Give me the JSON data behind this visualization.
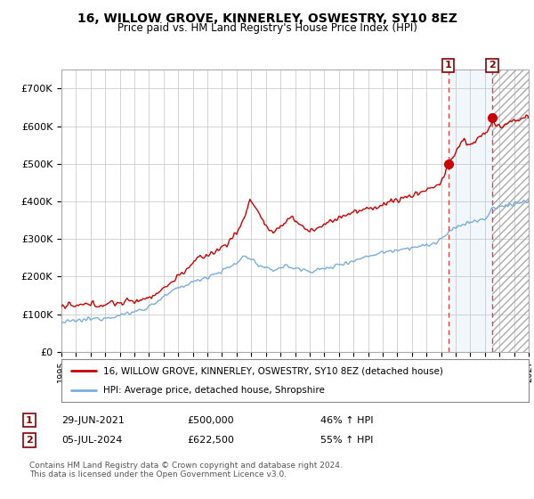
{
  "title": "16, WILLOW GROVE, KINNERLEY, OSWESTRY, SY10 8EZ",
  "subtitle": "Price paid vs. HM Land Registry's House Price Index (HPI)",
  "ylim": [
    0,
    750000
  ],
  "yticks": [
    0,
    100000,
    200000,
    300000,
    400000,
    500000,
    600000,
    700000
  ],
  "ytick_labels": [
    "£0",
    "£100K",
    "£200K",
    "£300K",
    "£400K",
    "£500K",
    "£600K",
    "£700K"
  ],
  "xlim_start": 1995.0,
  "xlim_end": 2027.0,
  "legend_line1": "16, WILLOW GROVE, KINNERLEY, OSWESTRY, SY10 8EZ (detached house)",
  "legend_line2": "HPI: Average price, detached house, Shropshire",
  "sale1_date": "29-JUN-2021",
  "sale1_price": "£500,000",
  "sale1_hpi": "46% ↑ HPI",
  "sale1_x": 2021.49,
  "sale1_y": 500000,
  "sale2_date": "05-JUL-2024",
  "sale2_price": "£622,500",
  "sale2_hpi": "55% ↑ HPI",
  "sale2_x": 2024.51,
  "sale2_y": 622500,
  "line_color_red": "#cc0000",
  "line_color_blue": "#7aade0",
  "vline_color": "#dd4444",
  "background_color": "#ffffff",
  "plot_bg_color": "#ffffff",
  "grid_color": "#cccccc",
  "footnote": "Contains HM Land Registry data © Crown copyright and database right 2024.\nThis data is licensed under the Open Government Licence v3.0."
}
